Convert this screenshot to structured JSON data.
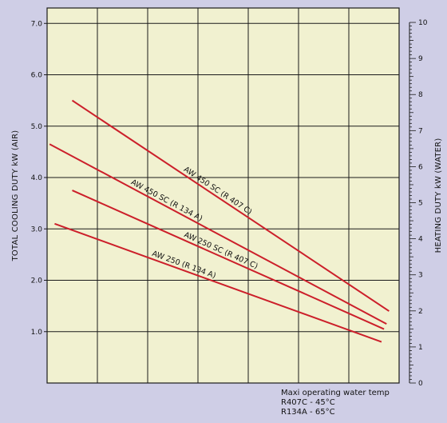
{
  "chart_data": {
    "type": "line",
    "xlabel": "",
    "ylabel": "TOTAL COOLING DUTY kW (AIR)",
    "y2label": "HEATING DUTY kW (WATER)",
    "ylim": [
      0,
      7.3
    ],
    "y2lim": [
      0,
      10.4
    ],
    "xlim": [
      0,
      7
    ],
    "x_grid_count": 7,
    "yticks": [
      {
        "value": 1.0,
        "label": "1.0"
      },
      {
        "value": 2.0,
        "label": "2.0"
      },
      {
        "value": 3.0,
        "label": "3.0"
      },
      {
        "value": 4.0,
        "label": "4.0"
      },
      {
        "value": 5.0,
        "label": "5.0"
      },
      {
        "value": 6.0,
        "label": "6.0"
      },
      {
        "value": 7.0,
        "label": "7.0"
      }
    ],
    "y2ticks": [
      {
        "value": 0,
        "label": "0"
      },
      {
        "value": 1,
        "label": "1"
      },
      {
        "value": 2,
        "label": "2"
      },
      {
        "value": 3,
        "label": "3"
      },
      {
        "value": 4,
        "label": "4"
      },
      {
        "value": 5,
        "label": "5"
      },
      {
        "value": 6,
        "label": "6"
      },
      {
        "value": 7,
        "label": "7"
      },
      {
        "value": 8,
        "label": "8"
      },
      {
        "value": 9,
        "label": "9"
      },
      {
        "value": 10,
        "label": "10"
      }
    ],
    "grid": true,
    "line_color": "#cc1f2a",
    "series": [
      {
        "name": "AW 450 SC (R 407 C)",
        "x": [
          0.5,
          6.8
        ],
        "y": [
          5.5,
          1.4
        ]
      },
      {
        "name": "AW 450 SC (R 134 A)",
        "x": [
          0.05,
          6.75
        ],
        "y": [
          4.65,
          1.15
        ]
      },
      {
        "name": "AW 250 SC (R 407 C)",
        "x": [
          0.5,
          6.7
        ],
        "y": [
          3.75,
          1.05
        ]
      },
      {
        "name": "AW 250 (R 134 A)",
        "x": [
          0.15,
          6.65
        ],
        "y": [
          3.1,
          0.8
        ]
      }
    ]
  },
  "notes": {
    "line1": "Maxi operating water temp",
    "line2": "R407C - 45°C",
    "line3": "R134A - 65°C"
  },
  "colors": {
    "background": "#cfcee6",
    "plot_background": "#f1f1d0",
    "grid": "#1a1a1a",
    "series_line": "#cc1f2a"
  }
}
